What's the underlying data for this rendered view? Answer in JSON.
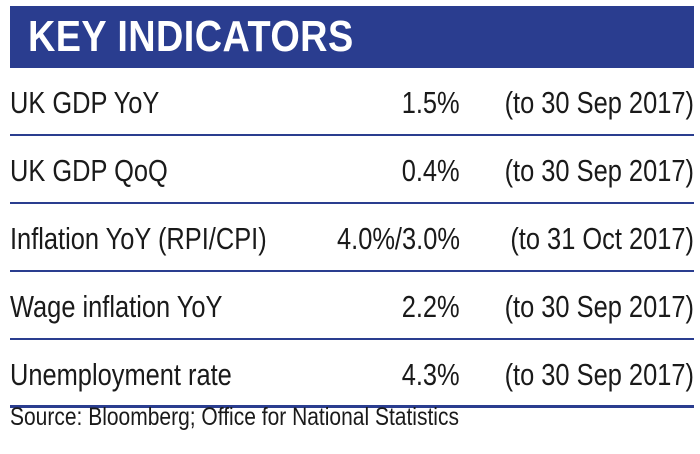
{
  "header": {
    "title": "KEY INDICATORS"
  },
  "indicators": [
    {
      "label": "UK GDP YoY",
      "value": "1.5%",
      "period": "(to 30 Sep 2017)"
    },
    {
      "label": "UK GDP QoQ",
      "value": "0.4%",
      "period": "(to 30 Sep 2017)"
    },
    {
      "label": "Inflation YoY (RPI/CPI)",
      "value": "4.0%/3.0%",
      "period": "(to 31 Oct 2017)"
    },
    {
      "label": "Wage inflation YoY",
      "value": "2.2%",
      "period": "(to 30 Sep 2017)"
    },
    {
      "label": "Unemployment rate",
      "value": "4.3%",
      "period": "(to 30 Sep 2017)"
    }
  ],
  "footer": {
    "source": "Source: Bloomberg; Office for National Statistics"
  },
  "colors": {
    "accent": "#2a3d8f",
    "header_text": "#ffffff",
    "body_text": "#1a1a1a"
  }
}
